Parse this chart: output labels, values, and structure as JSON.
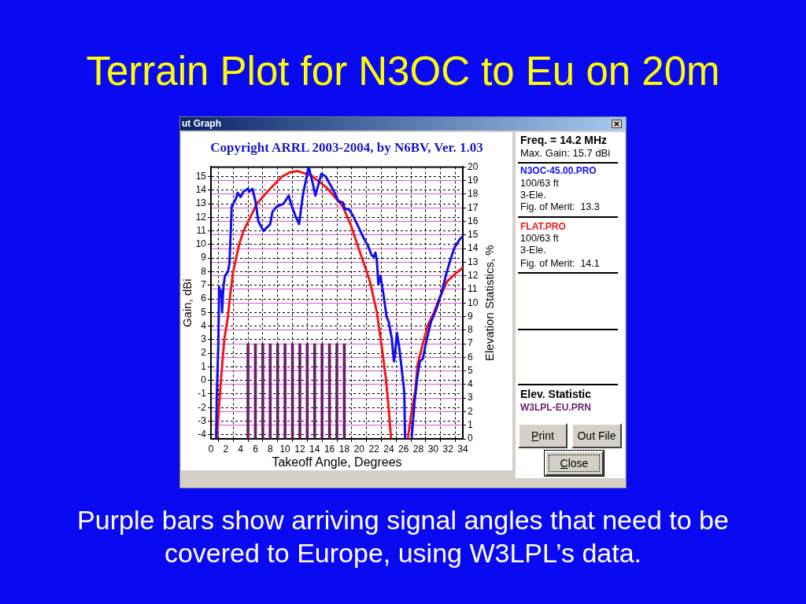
{
  "chart_data": {
    "type": "line",
    "title": "Terrain Plot for N3OC to Eu on 20m",
    "subtitle": "Copyright ARRL 2003-2004, by N6BV, Ver. 1.03",
    "xlabel": "Takeoff Angle, Degrees",
    "ylabel": "Gain, dBi",
    "y2label": "Elevation Statistics, %",
    "xlim": [
      0,
      34
    ],
    "xticks": [
      0,
      2,
      4,
      6,
      8,
      10,
      12,
      14,
      16,
      18,
      20,
      22,
      24,
      26,
      28,
      30,
      32,
      34
    ],
    "ylim": [
      -4.3,
      15.7
    ],
    "yticks": [
      -4,
      -3,
      -2,
      -1,
      0,
      1,
      2,
      3,
      4,
      5,
      6,
      7,
      8,
      9,
      10,
      11,
      12,
      13,
      14,
      15
    ],
    "y2lim": [
      0,
      20
    ],
    "y2ticks": [
      0,
      1,
      2,
      3,
      4,
      5,
      6,
      7,
      8,
      9,
      10,
      11,
      12,
      13,
      14,
      15,
      16,
      17,
      18,
      19,
      20
    ],
    "grid": true,
    "legend": "right",
    "marker": "none",
    "series": [
      {
        "name": "N3OC-45.00.PRO",
        "color": "#1010f0",
        "x": [
          0.7,
          0.8,
          1.0,
          1.1,
          1.3,
          1.4,
          1.5,
          1.7,
          1.9,
          2.3,
          2.5,
          2.7,
          2.8,
          3.4,
          3.6,
          4.0,
          4.4,
          5.0,
          5.2,
          5.6,
          6.0,
          6.4,
          7.1,
          8.0,
          8.3,
          8.9,
          9.8,
          10.5,
          10.8,
          11.4,
          11.9,
          12.4,
          13.1,
          13.2,
          13.7,
          14.1,
          14.6,
          14.9,
          15.5,
          15.8,
          16.2,
          16.7,
          17.2,
          17.8,
          18.1,
          18.6,
          19.2,
          19.9,
          20.6,
          21.2,
          21.7,
          22.0,
          22.2,
          22.4,
          22.6,
          22.9,
          23.1,
          23.3,
          23.7,
          24.0,
          24.4,
          24.7,
          24.9,
          25.1,
          25.4,
          25.8,
          26.1,
          26.2,
          26.6,
          27.1,
          27.5,
          27.9,
          28.2,
          28.6,
          29.0,
          29.7,
          30.4,
          31.1,
          31.8,
          32.4,
          32.9,
          33.6,
          34.0
        ],
        "values": [
          -4.2,
          -0.9,
          2.7,
          6.9,
          6.2,
          6.6,
          5.0,
          7.0,
          7.7,
          8.0,
          8.6,
          11.3,
          12.8,
          13.4,
          13.8,
          13.5,
          13.9,
          14.1,
          13.9,
          14.1,
          13.2,
          11.7,
          11.0,
          11.5,
          12.4,
          12.8,
          13.0,
          13.6,
          13.0,
          12.1,
          11.5,
          13.6,
          15.5,
          15.7,
          14.6,
          13.6,
          14.6,
          15.2,
          15.0,
          14.7,
          14.3,
          13.8,
          13.2,
          13.1,
          12.6,
          12.6,
          12.1,
          11.3,
          10.5,
          9.9,
          9.2,
          9.1,
          9.4,
          8.8,
          7.1,
          7.7,
          6.9,
          6.3,
          4.7,
          4.3,
          3.1,
          1.4,
          2.2,
          3.5,
          2.5,
          0.6,
          -0.9,
          -4.2,
          null,
          -4.2,
          -1.5,
          0.4,
          1.4,
          1.6,
          2.7,
          4.3,
          5.2,
          6.4,
          7.9,
          9.0,
          9.8,
          10.4,
          10.6
        ]
      },
      {
        "name": "FLAT.PRO",
        "color": "#f01818",
        "x": [
          0.8,
          1.1,
          1.4,
          1.8,
          2.3,
          2.6,
          3.0,
          3.8,
          4.4,
          5.3,
          6.2,
          7.8,
          9.6,
          10.6,
          11.7,
          13.5,
          15.6,
          17.8,
          18.9,
          19.7,
          20.9,
          21.5,
          22.4,
          23.0,
          23.6,
          24.0,
          24.3,
          25.5,
          26.6,
          27.0,
          27.6,
          27.9,
          28.6,
          29.3,
          30.1,
          30.8,
          31.9,
          32.9,
          34.0
        ],
        "values": [
          -4.2,
          -1.9,
          0.4,
          3.0,
          4.7,
          6.3,
          8.0,
          10.0,
          11.0,
          12.0,
          13.0,
          14.0,
          15.0,
          15.3,
          15.4,
          15.1,
          14.2,
          12.8,
          11.4,
          10.1,
          8.2,
          7.2,
          5.0,
          2.7,
          0.2,
          -2.1,
          -4.2,
          null,
          -4.2,
          -2.6,
          -0.7,
          1.2,
          2.7,
          4.1,
          5.0,
          6.0,
          7.3,
          7.8,
          8.3
        ]
      },
      {
        "name": "W3LPL-EU.PRN",
        "color": "#6a1e6a",
        "type": "bar",
        "axis": "y2",
        "x": [
          5,
          6,
          7,
          8,
          9,
          10,
          11,
          12,
          13,
          14,
          15,
          16,
          17,
          18
        ],
        "values": [
          7,
          7,
          7,
          7,
          7,
          7,
          7,
          7,
          7,
          7,
          7,
          7,
          7,
          7
        ]
      }
    ],
    "annotations": [
      "ut Graph",
      "Freq. = 14.2 MHz",
      "Max. Gain: 15.7 dBi",
      "100/63 ft",
      "3-Ele.",
      "Fig. of Merit:  13.3",
      "100/63 ft",
      "3-Ele.",
      "Fig. of Merit:  14.1",
      "Elev. Statistic",
      "Print",
      "Out File",
      "Close",
      "Purple bars show arriving signal angles that need to be covered to Europe, using W3LPL’s data."
    ]
  }
}
